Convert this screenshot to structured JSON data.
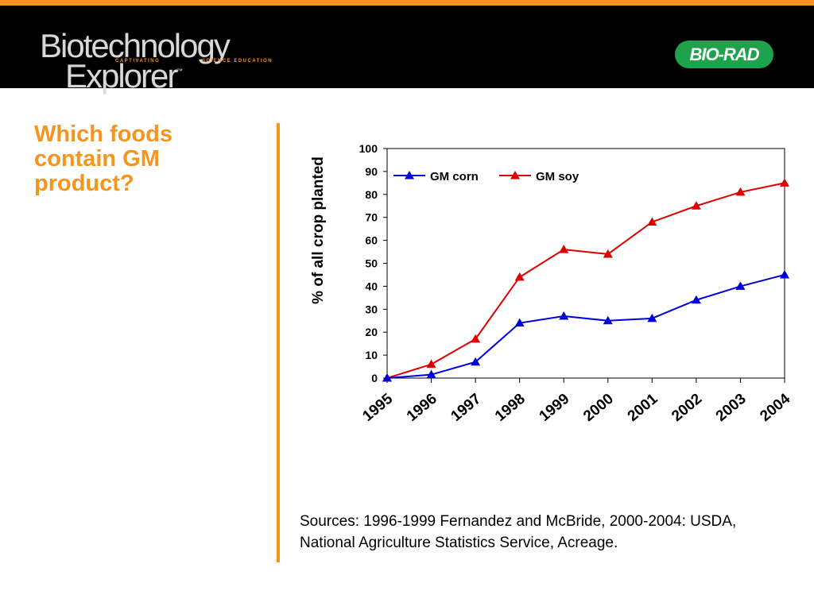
{
  "header": {
    "logo_line1": "Biotechnology",
    "logo_line2": "Explorer",
    "logo_tm": "™",
    "logo_tag_left": "CAPTIVATING",
    "logo_tag_right": "SCIENCE EDUCATION",
    "brand": "BIO-RAD"
  },
  "slide": {
    "title": "Which foods contain GM product?",
    "sources": "Sources: 1996-1999 Fernandez and McBride, 2000-2004: USDA, National Agriculture Statistics Service, Acreage."
  },
  "colors": {
    "accent": "#f7941d",
    "corn": "#0000dd",
    "soy": "#dd0000",
    "brand_green": "#1ea24b"
  },
  "chart_data": {
    "type": "line",
    "x": [
      "1995",
      "1996",
      "1997",
      "1998",
      "1999",
      "2000",
      "2001",
      "2002",
      "2003",
      "2004"
    ],
    "ylabel": "% of all crop planted",
    "ylim": [
      0,
      100
    ],
    "yticks": [
      0,
      10,
      20,
      30,
      40,
      50,
      60,
      70,
      80,
      90,
      100
    ],
    "legend_position": "top-left",
    "grid": false,
    "series": [
      {
        "name": "GM corn",
        "color": "#0000dd",
        "values": [
          0,
          1.5,
          7,
          24,
          27,
          25,
          26,
          34,
          40,
          45
        ]
      },
      {
        "name": "GM soy",
        "color": "#dd0000",
        "values": [
          0,
          6,
          17,
          44,
          56,
          54,
          68,
          75,
          81,
          85
        ]
      }
    ]
  }
}
